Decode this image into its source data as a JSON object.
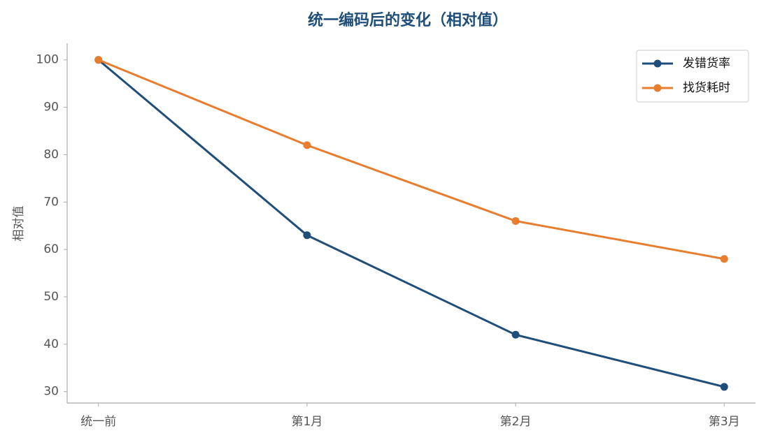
{
  "chart_data": {
    "type": "line",
    "title": "统一编码后的变化（相对值）",
    "y_label": "相对值",
    "categories": [
      "统一前",
      "第1月",
      "第2月",
      "第3月"
    ],
    "series": [
      {
        "name": "发错货率",
        "color": "#1f4e79",
        "values": [
          100,
          63,
          42,
          31
        ]
      },
      {
        "name": "找货耗时",
        "color": "#e87d2f",
        "values": [
          100,
          82,
          66,
          58
        ]
      }
    ],
    "ylim": [
      27.6,
      103.5
    ],
    "yticks": [
      30,
      40,
      50,
      60,
      70,
      80,
      90,
      100
    ],
    "grid": false,
    "legend": "upper right"
  }
}
